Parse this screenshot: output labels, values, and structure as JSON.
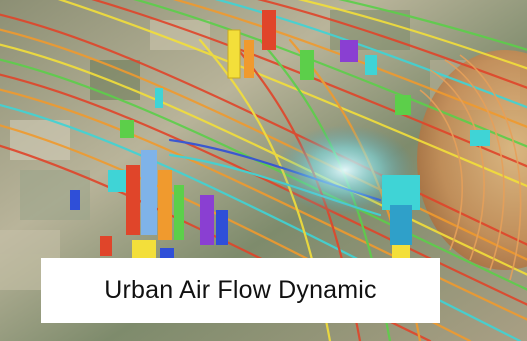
{
  "caption": {
    "text": "Urban Air Flow Dynamic"
  },
  "image": {
    "subject": "cfd-streamline-visualization-over-city",
    "colors": {
      "ground_light": "#c9c2a8",
      "ground_dark": "#6e7564",
      "vegetation": "#4f6b3a",
      "streamline_red": "#e0452a",
      "streamline_orange": "#f09a2e",
      "streamline_yellow": "#f3df3a",
      "streamline_green": "#5ccf4a",
      "streamline_cyan": "#3fd4d6",
      "streamline_blue": "#2f4fd8",
      "building_purple": "#8a3fd2",
      "dome_tan": "#d8a86a"
    }
  }
}
